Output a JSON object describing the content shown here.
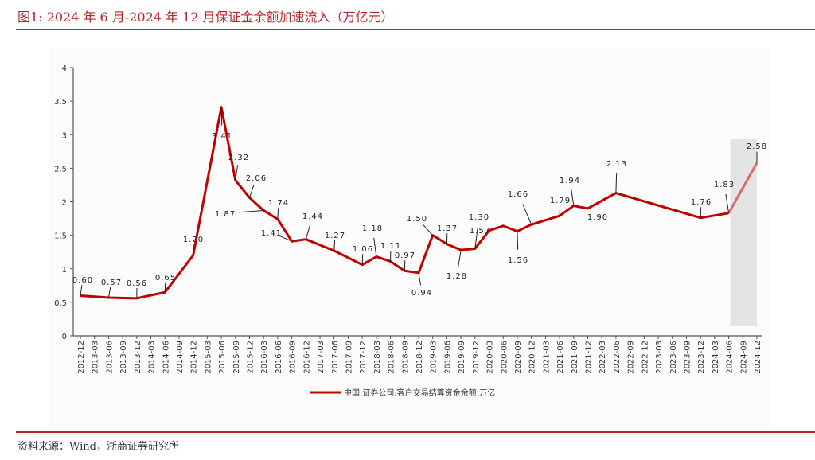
{
  "title": "图1:  2024 年 6 月-2024 年 12 月保证金余额加速流入（万亿元）",
  "source": "资料来源：Wind，浙商证券研究所",
  "chart_data": {
    "type": "line",
    "title": "",
    "xlabel": "",
    "ylabel": "",
    "ylim": [
      0,
      4
    ],
    "yticks": [
      "0",
      "0.5",
      "1",
      "1.5",
      "2",
      "2.5",
      "3",
      "3.5",
      "4"
    ],
    "grid": false,
    "legend_placement": "bottom",
    "categories": [
      "2012-12",
      "2013-03",
      "2013-06",
      "2013-09",
      "2013-12",
      "2014-03",
      "2014-06",
      "2014-09",
      "2014-12",
      "2015-03",
      "2015-06",
      "2015-09",
      "2015-12",
      "2016-03",
      "2016-06",
      "2016-09",
      "2016-12",
      "2017-03",
      "2017-06",
      "2017-09",
      "2017-12",
      "2018-03",
      "2018-06",
      "2018-09",
      "2018-12",
      "2019-03",
      "2019-06",
      "2019-09",
      "2019-12",
      "2020-03",
      "2020-06",
      "2020-09",
      "2020-12",
      "2021-03",
      "2021-06",
      "2021-09",
      "2021-12",
      "2022-03",
      "2022-06",
      "2022-09",
      "2022-12",
      "2023-03",
      "2023-06",
      "2023-09",
      "2023-12",
      "2024-03",
      "2024-06",
      "2024-09",
      "2024-12"
    ],
    "series": [
      {
        "name": "中国:证券公司:客户交易结算资金余额:万亿",
        "color": "#c00000",
        "points": [
          {
            "x": "2012-12",
            "y": 0.6,
            "label": "0.60"
          },
          {
            "x": "2013-06",
            "y": 0.57,
            "label": "0.57"
          },
          {
            "x": "2013-12",
            "y": 0.56,
            "label": "0.56"
          },
          {
            "x": "2014-06",
            "y": 0.65,
            "label": "0.65"
          },
          {
            "x": "2014-12",
            "y": 1.2,
            "label": "1.20"
          },
          {
            "x": "2015-06",
            "y": 3.41,
            "label": "3.41"
          },
          {
            "x": "2015-09",
            "y": 2.32,
            "label": "2.32"
          },
          {
            "x": "2015-12",
            "y": 2.06,
            "label": "2.06"
          },
          {
            "x": "2016-03",
            "y": 1.87,
            "label": "1.87"
          },
          {
            "x": "2016-06",
            "y": 1.74,
            "label": "1.74"
          },
          {
            "x": "2016-09",
            "y": 1.41,
            "label": "1.41"
          },
          {
            "x": "2016-12",
            "y": 1.44,
            "label": "1.44"
          },
          {
            "x": "2017-06",
            "y": 1.27,
            "label": "1.27"
          },
          {
            "x": "2017-12",
            "y": 1.06,
            "label": "1.06"
          },
          {
            "x": "2018-03",
            "y": 1.18,
            "label": "1.18"
          },
          {
            "x": "2018-06",
            "y": 1.11,
            "label": "1.11"
          },
          {
            "x": "2018-09",
            "y": 0.97,
            "label": "0.97"
          },
          {
            "x": "2018-12",
            "y": 0.94,
            "label": "0.94"
          },
          {
            "x": "2019-03",
            "y": 1.5,
            "label": "1.50"
          },
          {
            "x": "2019-06",
            "y": 1.37,
            "label": "1.37"
          },
          {
            "x": "2019-09",
            "y": 1.28,
            "label": "1.28"
          },
          {
            "x": "2019-12",
            "y": 1.3,
            "label": "1.30"
          },
          {
            "x": "2020-03",
            "y": 1.57,
            "label": "1.57"
          },
          {
            "x": "2020-06",
            "y": 1.64
          },
          {
            "x": "2020-09",
            "y": 1.56,
            "label": "1.56"
          },
          {
            "x": "2020-12",
            "y": 1.66,
            "label": "1.66"
          },
          {
            "x": "2021-06",
            "y": 1.79,
            "label": "1.79"
          },
          {
            "x": "2021-09",
            "y": 1.94,
            "label": "1.94"
          },
          {
            "x": "2021-12",
            "y": 1.9,
            "label": "1.90"
          },
          {
            "x": "2022-06",
            "y": 2.13,
            "label": "2.13"
          },
          {
            "x": "2023-12",
            "y": 1.76,
            "label": "1.76"
          },
          {
            "x": "2024-06",
            "y": 1.83,
            "label": "1.83"
          },
          {
            "x": "2024-12",
            "y": 2.58,
            "label": "2.58"
          }
        ]
      }
    ],
    "highlight_range": [
      "2024-06",
      "2024-12"
    ]
  }
}
